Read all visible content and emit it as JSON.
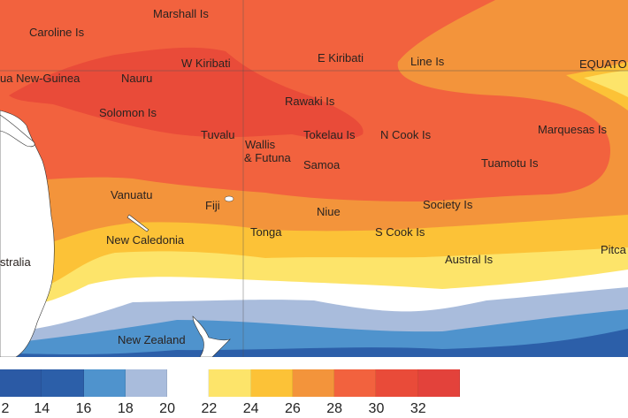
{
  "map": {
    "labels": {
      "marshall": "Marshall Is",
      "caroline": "Caroline Is",
      "png": "ua New-Guinea",
      "nauru": "Nauru",
      "wkiribati": "W Kiribati",
      "ekiribati": "E Kiribati",
      "line": "Line Is",
      "equator": "EQUATO",
      "solomon": "Solomon Is",
      "rawaki": "Rawaki Is",
      "tuvalu": "Tuvalu",
      "wallis1": "Wallis",
      "wallis2": "& Futuna",
      "tokelau": "Tokelau Is",
      "ncook": "N Cook Is",
      "marquesas": "Marquesas Is",
      "samoa": "Samoa",
      "tuamotu": "Tuamotu Is",
      "vanuatu": "Vanuatu",
      "fiji": "Fiji",
      "niue": "Niue",
      "society": "Society Is",
      "newcal": "New Caledonia",
      "tonga": "Tonga",
      "scook": "S Cook Is",
      "australia": "stralia",
      "austral": "Austral Is",
      "pitcairn": "Pitca",
      "nz": "New Zealand"
    }
  },
  "legend": {
    "colors": [
      "#2b5aa5",
      "#2c5fa9",
      "#4f93cd",
      "#a9bcdc",
      "#ffffff",
      "#fde46a",
      "#fcc237",
      "#f3943b",
      "#f2623e",
      "#e94b39",
      "#e3423b"
    ],
    "ticks": [
      "2",
      "14",
      "16",
      "18",
      "20",
      "22",
      "24",
      "26",
      "28",
      "30",
      "32"
    ]
  }
}
